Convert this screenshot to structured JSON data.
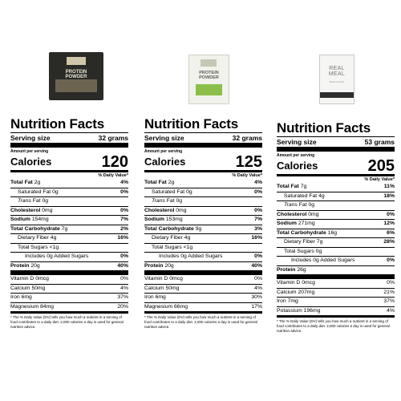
{
  "products": [
    {
      "package_lines": [
        "PROTEIN",
        "POWDER"
      ]
    },
    {
      "package_lines": [
        "PROTEIN",
        "POWDER"
      ]
    },
    {
      "package_lines": [
        "REAL",
        "MEAL"
      ],
      "package_sub": "RAW CACAO"
    }
  ],
  "title": "Nutrition Facts",
  "serving_size_label": "Serving size",
  "amount_per_serving": "Amount per serving",
  "calories_label": "Calories",
  "dv_header": "% Daily Value*",
  "labels": [
    {
      "serving_size": "32 grams",
      "calories": "120",
      "rows": [
        {
          "label": "Total Fat",
          "amount": "2g",
          "dv": "4%"
        },
        {
          "label": "Saturated Fat",
          "amount": "0g",
          "dv": "0%"
        },
        {
          "label": "Trans",
          "amount": "Fat 0g",
          "dv": ""
        },
        {
          "label": "Cholesterol",
          "amount": "0mg",
          "dv": "0%"
        },
        {
          "label": "Sodium",
          "amount": "154mg",
          "dv": "7%"
        },
        {
          "label": "Total Carbohydrate",
          "amount": "7g",
          "dv": "2%"
        },
        {
          "label": "Dietary Fiber",
          "amount": "4g",
          "dv": "16%"
        },
        {
          "label": "Total Sugars",
          "amount": "<1g",
          "dv": ""
        },
        {
          "label": "Includes",
          "amount": "0g Added Sugars",
          "dv": "0%"
        },
        {
          "label": "Protein",
          "amount": "20g",
          "dv": "40%"
        }
      ],
      "vitamins": [
        {
          "label": "Vitamin D 0mcg",
          "dv": "0%"
        },
        {
          "label": "Calcium 50mg",
          "dv": "4%"
        },
        {
          "label": "Iron 6mg",
          "dv": "37%"
        },
        {
          "label": "Magnesium 84mg",
          "dv": "20%"
        }
      ],
      "footnote": "* The % Daily Value (DV) tells you how much a nutrient in a serving of food contributes to a daily diet. 2,000 calories a day is used for general nutrition advice."
    },
    {
      "serving_size": "32 grams",
      "calories": "125",
      "rows": [
        {
          "label": "Total Fat",
          "amount": "2g",
          "dv": "4%"
        },
        {
          "label": "Saturated Fat",
          "amount": "0g",
          "dv": "0%"
        },
        {
          "label": "Trans",
          "amount": "Fat 0g",
          "dv": ""
        },
        {
          "label": "Cholesterol",
          "amount": "0mg",
          "dv": "0%"
        },
        {
          "label": "Sodium",
          "amount": "153mg",
          "dv": "7%"
        },
        {
          "label": "Total Carbohydrate",
          "amount": "9g",
          "dv": "3%"
        },
        {
          "label": "Dietary Fiber",
          "amount": "4g",
          "dv": "16%"
        },
        {
          "label": "Total Sugars",
          "amount": "<1g",
          "dv": ""
        },
        {
          "label": "Includes",
          "amount": "0g Added Sugars",
          "dv": "0%"
        },
        {
          "label": "Protein",
          "amount": "20g",
          "dv": "40%"
        }
      ],
      "vitamins": [
        {
          "label": "Vitamin D 0mcg",
          "dv": "0%"
        },
        {
          "label": "Calcium 50mg",
          "dv": "4%"
        },
        {
          "label": "Iron 6mg",
          "dv": "30%"
        },
        {
          "label": "Magnesium 66mg",
          "dv": "17%"
        }
      ],
      "footnote": "* The % Daily Value (DV) tells you how much a nutrient in a serving of food contributes to a daily diet. 2,000 calories a day is used for general nutrition advice."
    },
    {
      "serving_size": "53 grams",
      "calories": "205",
      "rows": [
        {
          "label": "Total Fat",
          "amount": "7g",
          "dv": "11%"
        },
        {
          "label": "Saturated Fat",
          "amount": "4g",
          "dv": "18%"
        },
        {
          "label": "Trans",
          "amount": "Fat 0g",
          "dv": ""
        },
        {
          "label": "Cholesterol",
          "amount": "0mg",
          "dv": "0%"
        },
        {
          "label": "Sodium",
          "amount": "271mg",
          "dv": "12%"
        },
        {
          "label": "Total Carbohydrate",
          "amount": "16g",
          "dv": "6%"
        },
        {
          "label": "Dietary Fiber",
          "amount": "7g",
          "dv": "28%"
        },
        {
          "label": "Total Sugars",
          "amount": "0g",
          "dv": ""
        },
        {
          "label": "Includes",
          "amount": "0g Added Sugars",
          "dv": "0%"
        },
        {
          "label": "Protein",
          "amount": "26g",
          "dv": ""
        }
      ],
      "vitamins": [
        {
          "label": "Vitamin D 0mcg",
          "dv": "0%"
        },
        {
          "label": "Calcium 207mg",
          "dv": "21%"
        },
        {
          "label": "Iron 7mg",
          "dv": "37%"
        },
        {
          "label": "Potassium 196mg",
          "dv": "4%"
        }
      ],
      "footnote": "* The % Daily Value (DV) tells you how much a nutrient in a serving of food contributes to a daily diet. 2,000 calories a day is used for general nutrition advice."
    }
  ]
}
